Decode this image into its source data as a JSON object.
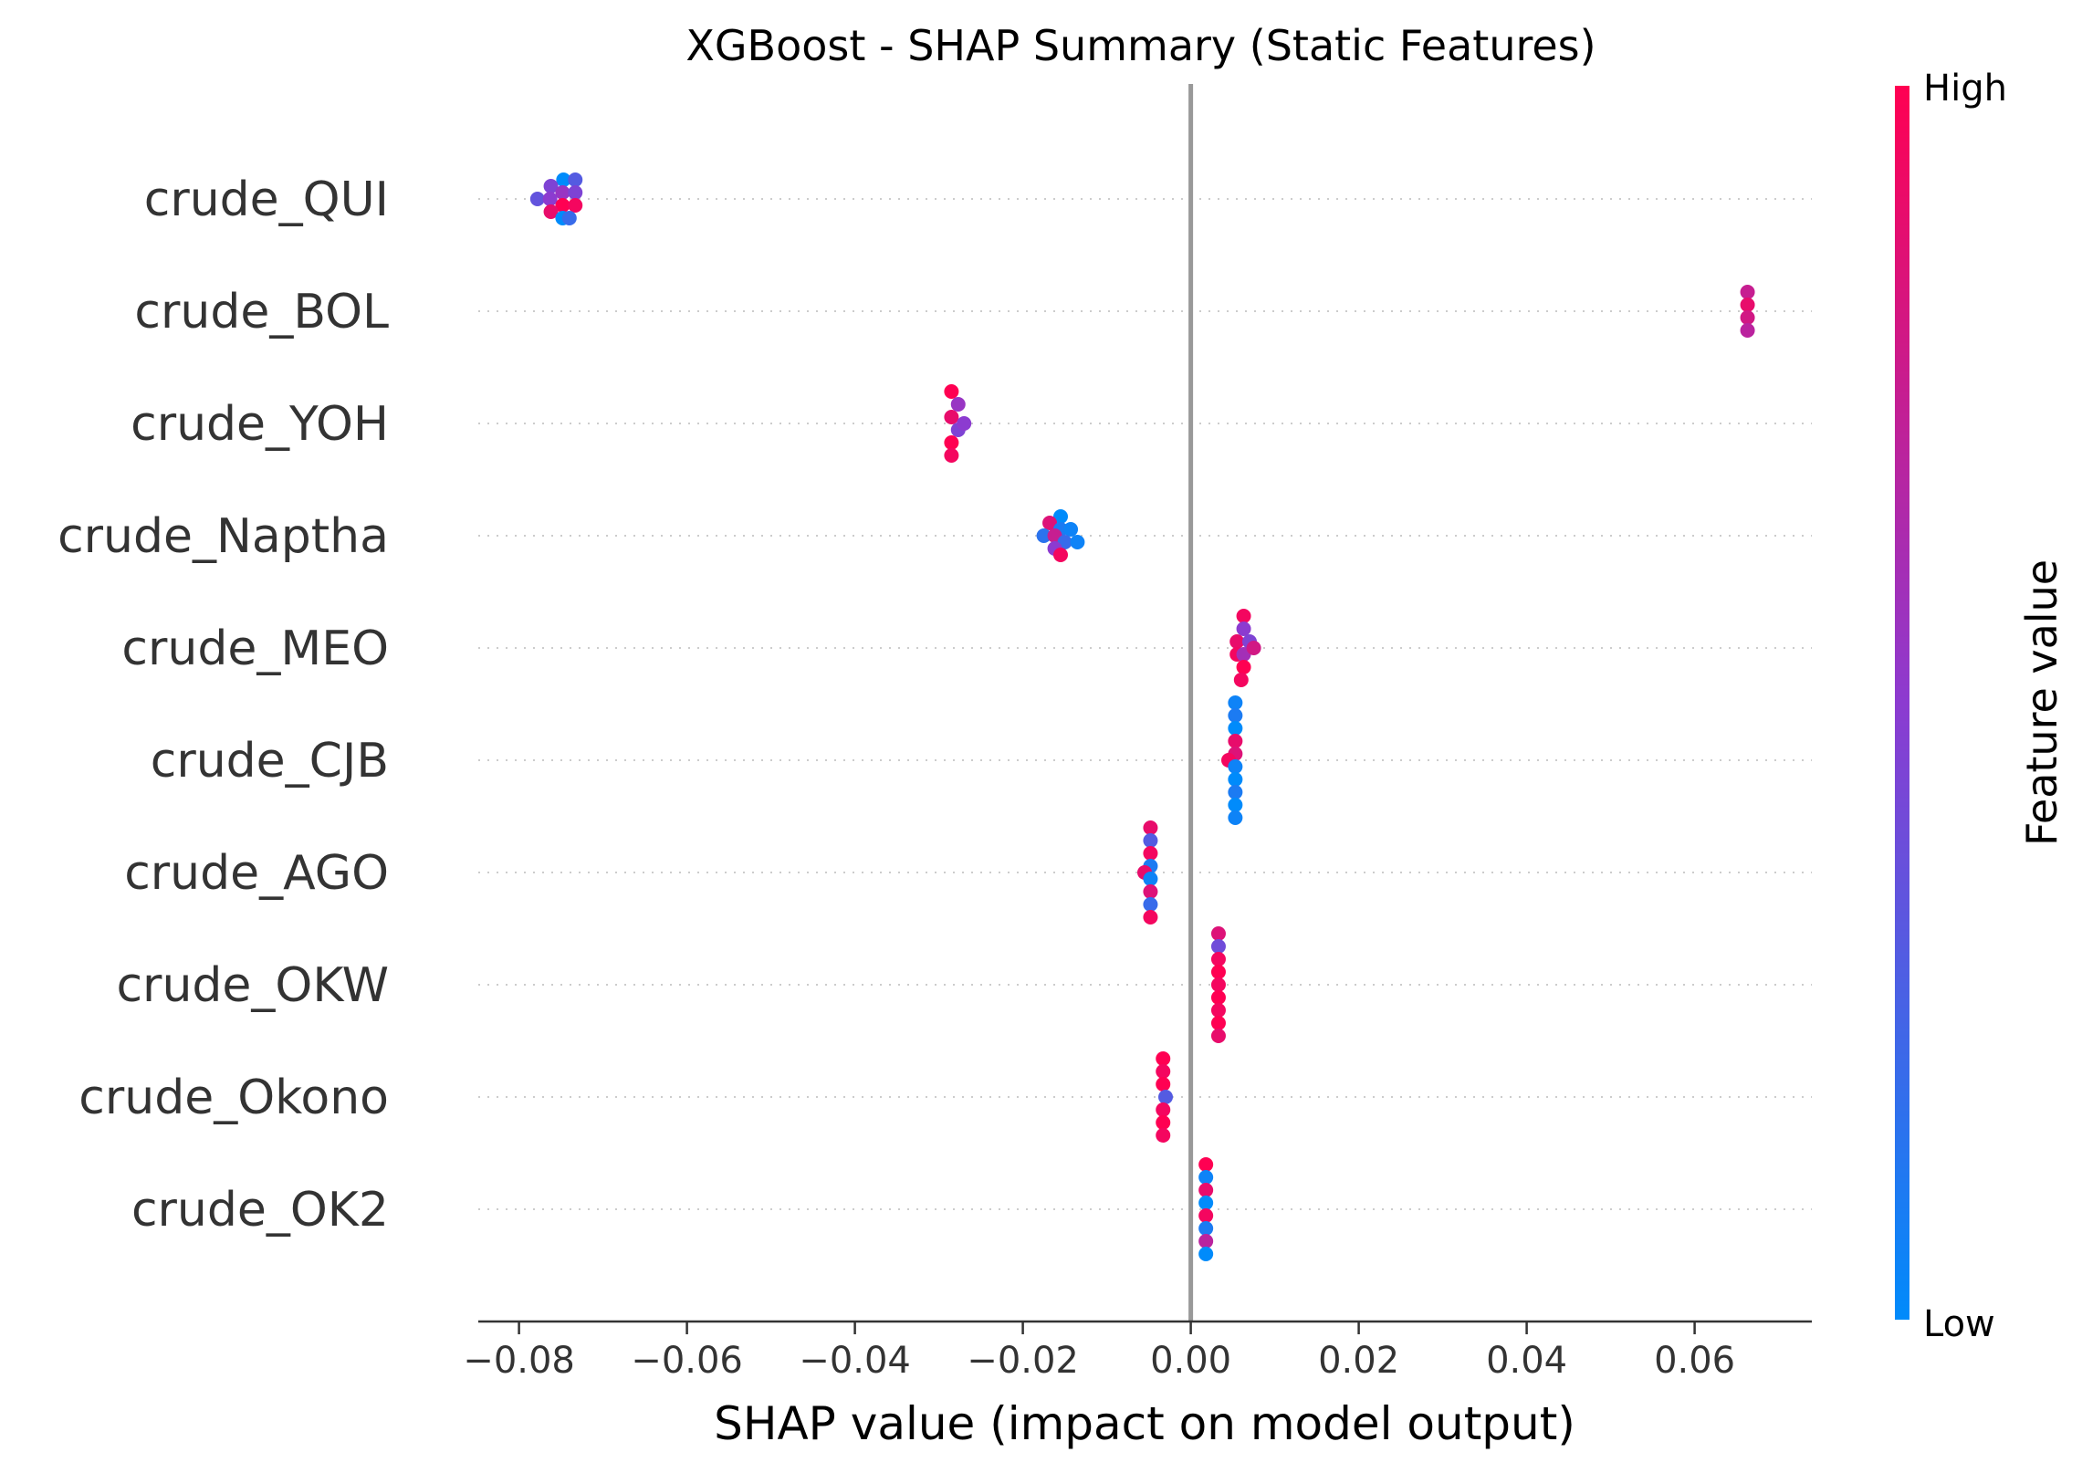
{
  "chart_data": {
    "type": "scatter",
    "title": "XGBoost - SHAP Summary (Static Features)",
    "xlabel": "SHAP value (impact on model output)",
    "xlim": [
      -0.085,
      0.073
    ],
    "xticks": [
      -0.08,
      -0.06,
      -0.04,
      -0.02,
      0.0,
      0.02,
      0.04,
      0.06
    ],
    "xtick_labels": [
      "−0.08",
      "−0.06",
      "−0.04",
      "−0.02",
      "0.00",
      "0.02",
      "0.04",
      "0.06"
    ],
    "zero_line": 0.0,
    "grid": "dotted horizontal lines per feature",
    "colorbar": {
      "title": "Feature value",
      "high_label": "High",
      "low_label": "Low",
      "low_color": "#008bfb",
      "high_color": "#ff0052"
    },
    "features": [
      {
        "name": "crude_QUI",
        "points": [
          {
            "x": -0.0747,
            "v": 0.0
          },
          {
            "x": -0.0762,
            "v": 0.45
          },
          {
            "x": -0.0748,
            "v": 0.55
          },
          {
            "x": -0.0733,
            "v": 0.3
          },
          {
            "x": -0.0778,
            "v": 0.35
          },
          {
            "x": -0.0763,
            "v": 0.5
          },
          {
            "x": -0.0748,
            "v": 1.0
          },
          {
            "x": -0.0733,
            "v": 0.45
          },
          {
            "x": -0.0762,
            "v": 0.9
          },
          {
            "x": -0.0748,
            "v": 0.0
          },
          {
            "x": -0.0733,
            "v": 0.95
          },
          {
            "x": -0.074,
            "v": 0.2
          }
        ]
      },
      {
        "name": "crude_BOL",
        "points": [
          {
            "x": 0.0663,
            "v": 0.75
          },
          {
            "x": 0.0663,
            "v": 0.9
          },
          {
            "x": 0.0663,
            "v": 0.8
          },
          {
            "x": 0.0663,
            "v": 0.7
          }
        ]
      },
      {
        "name": "crude_YOH",
        "points": [
          {
            "x": -0.0285,
            "v": 1.0
          },
          {
            "x": -0.0277,
            "v": 0.55
          },
          {
            "x": -0.0285,
            "v": 0.9
          },
          {
            "x": -0.0277,
            "v": 0.45
          },
          {
            "x": -0.027,
            "v": 0.5
          },
          {
            "x": -0.0285,
            "v": 1.0
          },
          {
            "x": -0.0285,
            "v": 0.95
          }
        ]
      },
      {
        "name": "crude_Naptha",
        "points": [
          {
            "x": -0.0155,
            "v": 0.0
          },
          {
            "x": -0.0168,
            "v": 0.85
          },
          {
            "x": -0.0155,
            "v": 0.1
          },
          {
            "x": -0.0143,
            "v": 0.05
          },
          {
            "x": -0.0175,
            "v": 0.15
          },
          {
            "x": -0.0162,
            "v": 0.75
          },
          {
            "x": -0.015,
            "v": 0.2
          },
          {
            "x": -0.0135,
            "v": 0.05
          },
          {
            "x": -0.0162,
            "v": 0.5
          },
          {
            "x": -0.0155,
            "v": 0.95
          }
        ]
      },
      {
        "name": "crude_MEO",
        "points": [
          {
            "x": 0.0063,
            "v": 0.95
          },
          {
            "x": 0.0063,
            "v": 0.5
          },
          {
            "x": 0.0055,
            "v": 0.9
          },
          {
            "x": 0.007,
            "v": 0.45
          },
          {
            "x": 0.0055,
            "v": 0.95
          },
          {
            "x": 0.0063,
            "v": 0.6
          },
          {
            "x": 0.0075,
            "v": 0.8
          },
          {
            "x": 0.0063,
            "v": 1.0
          },
          {
            "x": 0.006,
            "v": 0.95
          }
        ]
      },
      {
        "name": "crude_CJB",
        "points": [
          {
            "x": 0.0053,
            "v": 0.05
          },
          {
            "x": 0.0053,
            "v": 0.1
          },
          {
            "x": 0.0053,
            "v": 0.0
          },
          {
            "x": 0.0053,
            "v": 0.9
          },
          {
            "x": 0.0053,
            "v": 0.85
          },
          {
            "x": 0.0045,
            "v": 0.95
          },
          {
            "x": 0.0053,
            "v": 0.05
          },
          {
            "x": 0.0053,
            "v": 0.0
          },
          {
            "x": 0.0053,
            "v": 0.1
          },
          {
            "x": 0.0053,
            "v": 0.0
          },
          {
            "x": 0.0053,
            "v": 0.05
          }
        ]
      },
      {
        "name": "crude_AGO",
        "points": [
          {
            "x": -0.0048,
            "v": 0.9
          },
          {
            "x": -0.0048,
            "v": 0.3
          },
          {
            "x": -0.0048,
            "v": 0.95
          },
          {
            "x": -0.0048,
            "v": 0.1
          },
          {
            "x": -0.0055,
            "v": 0.9
          },
          {
            "x": -0.0048,
            "v": 0.05
          },
          {
            "x": -0.0048,
            "v": 0.85
          },
          {
            "x": -0.0048,
            "v": 0.2
          },
          {
            "x": -0.0048,
            "v": 0.95
          }
        ]
      },
      {
        "name": "crude_OKW",
        "points": [
          {
            "x": 0.0033,
            "v": 0.85
          },
          {
            "x": 0.0033,
            "v": 0.4
          },
          {
            "x": 0.0033,
            "v": 0.95
          },
          {
            "x": 0.0033,
            "v": 1.0
          },
          {
            "x": 0.0033,
            "v": 0.95
          },
          {
            "x": 0.0033,
            "v": 1.0
          },
          {
            "x": 0.0033,
            "v": 0.95
          },
          {
            "x": 0.0033,
            "v": 1.0
          },
          {
            "x": 0.0033,
            "v": 0.9
          }
        ]
      },
      {
        "name": "crude_Okono",
        "points": [
          {
            "x": -0.0033,
            "v": 1.0
          },
          {
            "x": -0.0033,
            "v": 0.95
          },
          {
            "x": -0.0033,
            "v": 1.0
          },
          {
            "x": -0.003,
            "v": 0.3
          },
          {
            "x": -0.0033,
            "v": 0.95
          },
          {
            "x": -0.0033,
            "v": 1.0
          },
          {
            "x": -0.0033,
            "v": 0.95
          }
        ]
      },
      {
        "name": "crude_OK2",
        "points": [
          {
            "x": 0.0018,
            "v": 1.0
          },
          {
            "x": 0.0018,
            "v": 0.05
          },
          {
            "x": 0.0018,
            "v": 0.9
          },
          {
            "x": 0.0018,
            "v": 0.0
          },
          {
            "x": 0.0018,
            "v": 0.95
          },
          {
            "x": 0.0018,
            "v": 0.1
          },
          {
            "x": 0.0018,
            "v": 0.7
          },
          {
            "x": 0.0018,
            "v": 0.0
          }
        ]
      }
    ]
  }
}
